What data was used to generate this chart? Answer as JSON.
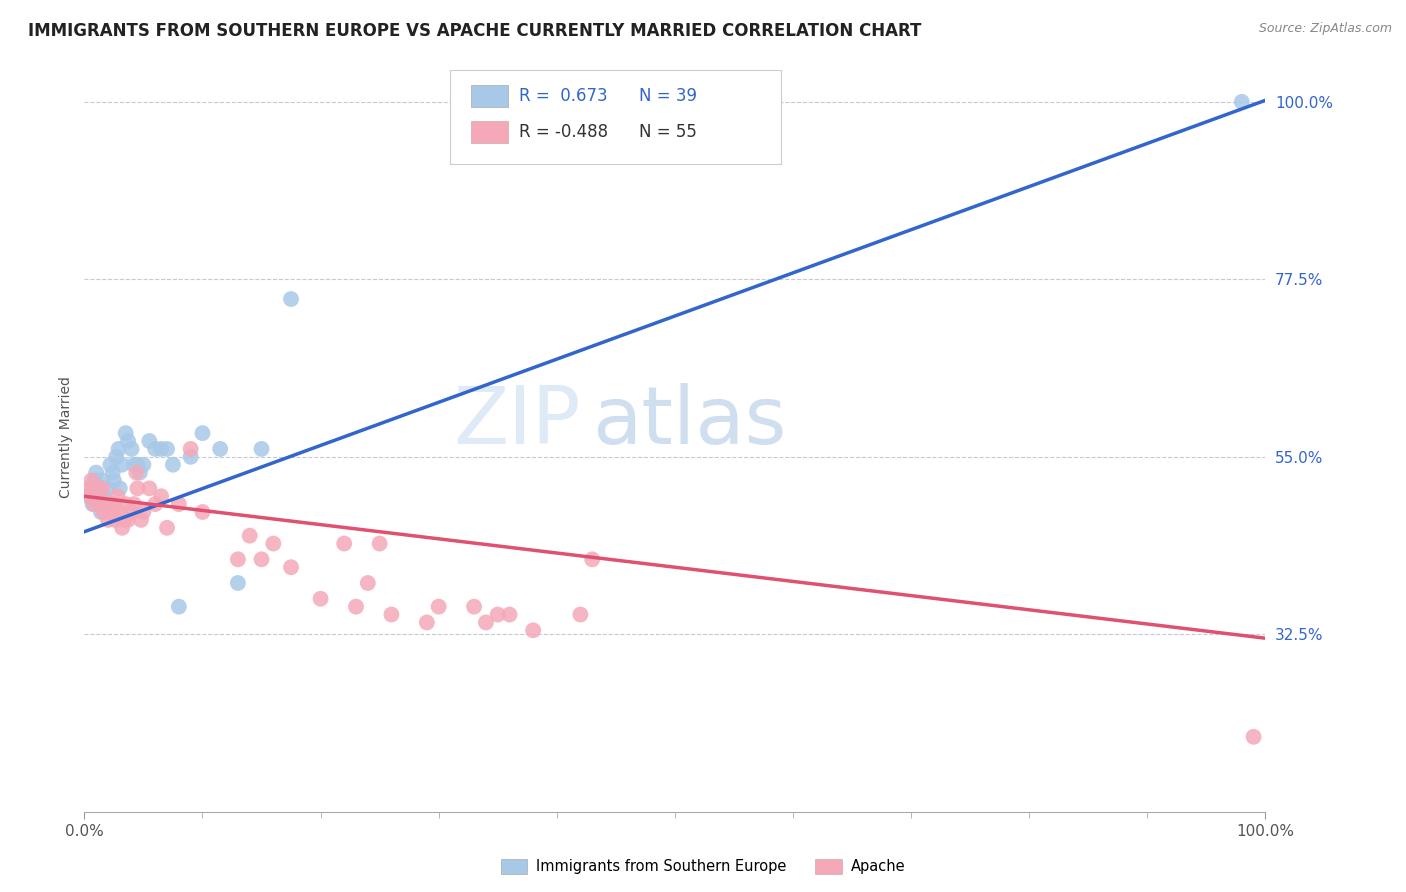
{
  "title": "IMMIGRANTS FROM SOUTHERN EUROPE VS APACHE CURRENTLY MARRIED CORRELATION CHART",
  "source": "Source: ZipAtlas.com",
  "ylabel": "Currently Married",
  "watermark_zip": "ZIP",
  "watermark_atlas": "atlas",
  "blue_R": 0.673,
  "blue_N": 39,
  "pink_R": -0.488,
  "pink_N": 55,
  "blue_color": "#A8C8E8",
  "pink_color": "#F4A8B8",
  "blue_line_color": "#3366CC",
  "pink_line_color": "#E05070",
  "blue_scatter": [
    [
      0.003,
      0.5
    ],
    [
      0.005,
      0.51
    ],
    [
      0.007,
      0.49
    ],
    [
      0.009,
      0.52
    ],
    [
      0.01,
      0.53
    ],
    [
      0.012,
      0.5
    ],
    [
      0.013,
      0.51
    ],
    [
      0.014,
      0.48
    ],
    [
      0.015,
      0.52
    ],
    [
      0.016,
      0.5
    ],
    [
      0.018,
      0.49
    ],
    [
      0.02,
      0.51
    ],
    [
      0.022,
      0.54
    ],
    [
      0.024,
      0.53
    ],
    [
      0.025,
      0.52
    ],
    [
      0.027,
      0.55
    ],
    [
      0.029,
      0.56
    ],
    [
      0.03,
      0.51
    ],
    [
      0.032,
      0.54
    ],
    [
      0.035,
      0.58
    ],
    [
      0.037,
      0.57
    ],
    [
      0.04,
      0.56
    ],
    [
      0.042,
      0.54
    ],
    [
      0.045,
      0.54
    ],
    [
      0.047,
      0.53
    ],
    [
      0.05,
      0.54
    ],
    [
      0.055,
      0.57
    ],
    [
      0.06,
      0.56
    ],
    [
      0.065,
      0.56
    ],
    [
      0.07,
      0.56
    ],
    [
      0.075,
      0.54
    ],
    [
      0.08,
      0.36
    ],
    [
      0.09,
      0.55
    ],
    [
      0.1,
      0.58
    ],
    [
      0.115,
      0.56
    ],
    [
      0.13,
      0.39
    ],
    [
      0.15,
      0.56
    ],
    [
      0.175,
      0.75
    ],
    [
      0.98,
      1.0
    ]
  ],
  "pink_scatter": [
    [
      0.003,
      0.51
    ],
    [
      0.005,
      0.5
    ],
    [
      0.006,
      0.52
    ],
    [
      0.008,
      0.49
    ],
    [
      0.01,
      0.51
    ],
    [
      0.012,
      0.5
    ],
    [
      0.013,
      0.49
    ],
    [
      0.015,
      0.51
    ],
    [
      0.016,
      0.48
    ],
    [
      0.018,
      0.49
    ],
    [
      0.02,
      0.47
    ],
    [
      0.022,
      0.49
    ],
    [
      0.024,
      0.48
    ],
    [
      0.025,
      0.49
    ],
    [
      0.026,
      0.47
    ],
    [
      0.028,
      0.5
    ],
    [
      0.03,
      0.48
    ],
    [
      0.032,
      0.46
    ],
    [
      0.034,
      0.47
    ],
    [
      0.035,
      0.49
    ],
    [
      0.037,
      0.47
    ],
    [
      0.04,
      0.48
    ],
    [
      0.042,
      0.49
    ],
    [
      0.044,
      0.53
    ],
    [
      0.045,
      0.51
    ],
    [
      0.048,
      0.47
    ],
    [
      0.05,
      0.48
    ],
    [
      0.055,
      0.51
    ],
    [
      0.06,
      0.49
    ],
    [
      0.065,
      0.5
    ],
    [
      0.07,
      0.46
    ],
    [
      0.08,
      0.49
    ],
    [
      0.09,
      0.56
    ],
    [
      0.1,
      0.48
    ],
    [
      0.13,
      0.42
    ],
    [
      0.14,
      0.45
    ],
    [
      0.15,
      0.42
    ],
    [
      0.16,
      0.44
    ],
    [
      0.175,
      0.41
    ],
    [
      0.2,
      0.37
    ],
    [
      0.22,
      0.44
    ],
    [
      0.23,
      0.36
    ],
    [
      0.24,
      0.39
    ],
    [
      0.25,
      0.44
    ],
    [
      0.26,
      0.35
    ],
    [
      0.29,
      0.34
    ],
    [
      0.3,
      0.36
    ],
    [
      0.33,
      0.36
    ],
    [
      0.34,
      0.34
    ],
    [
      0.35,
      0.35
    ],
    [
      0.36,
      0.35
    ],
    [
      0.38,
      0.33
    ],
    [
      0.42,
      0.35
    ],
    [
      0.43,
      0.42
    ],
    [
      0.99,
      0.195
    ]
  ],
  "blue_line_x": [
    0.0,
    1.0
  ],
  "blue_line_y": [
    0.455,
    1.002
  ],
  "pink_line_x": [
    0.0,
    1.0
  ],
  "pink_line_y": [
    0.5,
    0.32
  ],
  "xlim": [
    0.0,
    1.0
  ],
  "ylim": [
    0.1,
    1.05
  ],
  "ytick_vals": [
    0.325,
    0.55,
    0.775,
    1.0
  ],
  "ytick_labels": [
    "32.5%",
    "55.0%",
    "77.5%",
    "100.0%"
  ],
  "xtick_positions": [
    0.0,
    1.0
  ],
  "xtick_labels": [
    "0.0%",
    "100.0%"
  ],
  "grid_color": "#C8C8D8",
  "background_color": "#FFFFFF",
  "legend_blue_label": "Immigrants from Southern Europe",
  "legend_pink_label": "Apache",
  "title_fontsize": 12,
  "tick_fontsize": 11
}
